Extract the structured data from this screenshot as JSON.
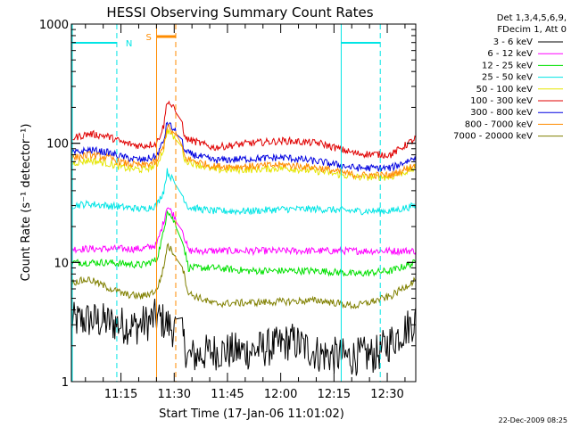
{
  "chart_data": {
    "type": "line",
    "title": "HESSI Observing Summary Count Rates",
    "xlabel": "Start Time (17-Jan-06 11:01:02)",
    "ylabel": "Count Rate (s⁻¹ detector⁻¹)",
    "yscale": "log",
    "ylim": [
      1,
      1000
    ],
    "xlim_minutes_after_start": [
      0,
      97
    ],
    "x_ticks": [
      "11:15",
      "11:30",
      "11:45",
      "12:00",
      "12:15",
      "12:30"
    ],
    "y_ticks": [
      "1",
      "10",
      "100",
      "1000"
    ],
    "timestamp": "22-Dec-2009 08:25",
    "legend_title": [
      "Det 1,3,4,5,6,9,",
      "FDecim 1, Att 0"
    ],
    "legend_position": "right",
    "grid": false,
    "annotations": [
      {
        "label": "N",
        "color": "#00e5e5",
        "x_min": [
          0,
          12.8,
          76,
          87
        ]
      },
      {
        "label": "S",
        "color": "#ff8c00",
        "x_min": [
          24,
          29.4
        ]
      }
    ],
    "gap_minutes": [
      29.6,
      31.0
    ],
    "series": [
      {
        "name": "3 - 6 keV",
        "color": "#000000",
        "t": [
          0,
          5,
          12,
          14,
          18,
          22,
          24,
          31,
          33,
          40,
          50,
          58,
          62,
          70,
          78,
          86,
          93,
          97
        ],
        "v": [
          3.2,
          3.3,
          3.1,
          3.0,
          2.9,
          3.2,
          3.5,
          2.5,
          1.6,
          1.8,
          1.8,
          2.0,
          2.2,
          1.7,
          1.6,
          1.7,
          2.6,
          3.3
        ]
      },
      {
        "name": "6 - 12 keV",
        "color": "#ff00ff",
        "t": [
          0,
          10,
          20,
          24,
          26,
          27,
          31,
          33,
          40,
          50,
          60,
          70,
          80,
          90,
          97
        ],
        "v": [
          13,
          13,
          13,
          14,
          22,
          30,
          20,
          12.5,
          12.5,
          12.5,
          12.5,
          12.5,
          12.5,
          12.5,
          12.5
        ]
      },
      {
        "name": "12 - 25 keV",
        "color": "#00e000",
        "t": [
          0,
          10,
          20,
          24,
          26,
          27,
          31,
          33,
          40,
          50,
          60,
          70,
          80,
          90,
          97
        ],
        "v": [
          10,
          10,
          9.5,
          10.5,
          18,
          28,
          17,
          9,
          9,
          8.5,
          8.5,
          8.5,
          8,
          8.5,
          10
        ]
      },
      {
        "name": "25 - 50 keV",
        "color": "#00e5e5",
        "t": [
          0,
          5,
          10,
          20,
          24,
          26,
          27,
          31,
          33,
          40,
          50,
          60,
          70,
          80,
          90,
          97
        ],
        "v": [
          30,
          31,
          30,
          28,
          30,
          40,
          58,
          38,
          29,
          27,
          27,
          28,
          28,
          27,
          27,
          30
        ]
      },
      {
        "name": "50 - 100 keV",
        "color": "#e5e500",
        "t": [
          0,
          5,
          10,
          15,
          20,
          24,
          26,
          27,
          31,
          32,
          40,
          50,
          60,
          70,
          80,
          90,
          97
        ],
        "v": [
          68,
          72,
          68,
          62,
          60,
          65,
          90,
          130,
          95,
          72,
          60,
          60,
          62,
          58,
          52,
          52,
          62
        ]
      },
      {
        "name": "100 - 300 keV",
        "color": "#e00000",
        "t": [
          0,
          5,
          10,
          15,
          20,
          24,
          26,
          27,
          31,
          32,
          40,
          50,
          60,
          70,
          80,
          90,
          97
        ],
        "v": [
          110,
          120,
          115,
          100,
          95,
          100,
          140,
          230,
          160,
          110,
          92,
          100,
          105,
          100,
          82,
          80,
          110
        ]
      },
      {
        "name": "300 - 800 keV",
        "color": "#0000e0",
        "t": [
          0,
          5,
          10,
          15,
          20,
          24,
          26,
          27,
          31,
          32,
          40,
          50,
          60,
          70,
          80,
          90,
          97
        ],
        "v": [
          82,
          88,
          84,
          76,
          72,
          78,
          105,
          150,
          110,
          84,
          72,
          74,
          76,
          70,
          62,
          62,
          76
        ]
      },
      {
        "name": "800 - 7000 keV",
        "color": "#ff8c00",
        "t": [
          0,
          5,
          10,
          15,
          20,
          24,
          26,
          27,
          31,
          32,
          40,
          50,
          60,
          70,
          80,
          90,
          97
        ],
        "v": [
          75,
          80,
          76,
          68,
          65,
          70,
          95,
          140,
          100,
          75,
          64,
          64,
          66,
          62,
          54,
          54,
          66
        ]
      },
      {
        "name": "7000 - 20000 keV",
        "color": "#808000",
        "t": [
          0,
          5,
          10,
          15,
          20,
          24,
          26,
          27,
          31,
          33,
          40,
          50,
          60,
          70,
          80,
          90,
          97
        ],
        "v": [
          6.8,
          7.2,
          6.2,
          5.4,
          5.2,
          5.8,
          9,
          14,
          10,
          5.5,
          4.5,
          4.6,
          4.7,
          4.8,
          4.3,
          5.2,
          7.2
        ]
      }
    ]
  }
}
